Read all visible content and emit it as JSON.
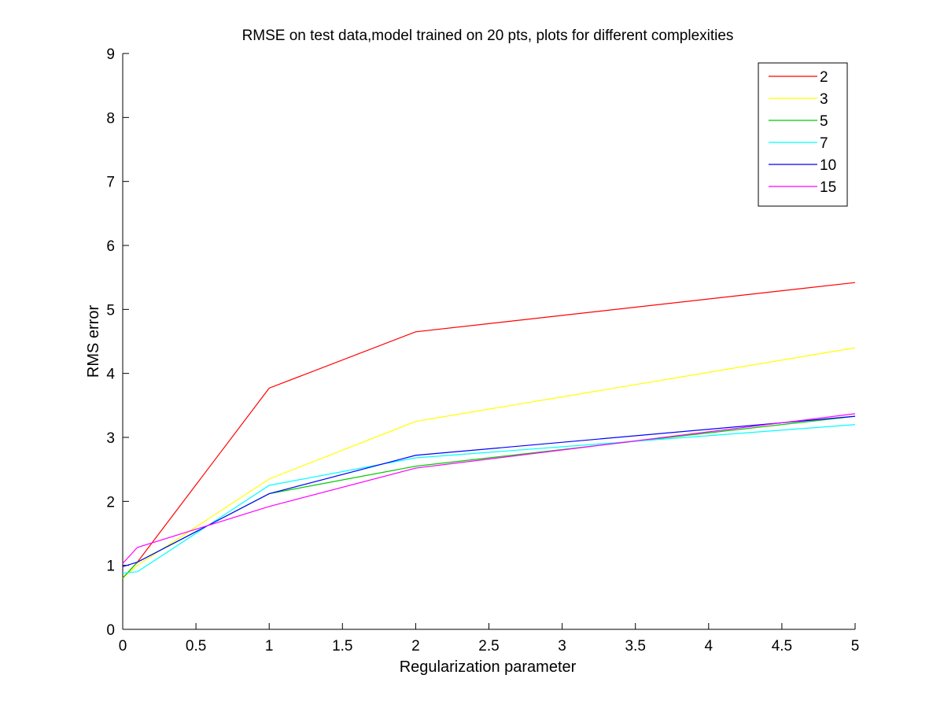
{
  "chart_data": {
    "type": "line",
    "title": "RMSE on test data,model trained on 20 pts, plots for different complexities",
    "xlabel": "Regularization parameter",
    "ylabel": "RMS error",
    "xlim": [
      0,
      5
    ],
    "ylim": [
      0,
      9
    ],
    "x_ticks": [
      0,
      0.5,
      1,
      1.5,
      2,
      2.5,
      3,
      3.5,
      4,
      4.5,
      5
    ],
    "y_ticks": [
      0,
      1,
      2,
      3,
      4,
      5,
      6,
      7,
      8,
      9
    ],
    "grid": false,
    "legend_position": "top-right",
    "x": [
      0,
      0.1,
      1,
      2,
      5
    ],
    "series": [
      {
        "name": "2",
        "color": "#ff0000",
        "values": [
          0.8,
          1.05,
          3.77,
          4.65,
          5.42
        ]
      },
      {
        "name": "3",
        "color": "#ffff00",
        "values": [
          0.8,
          1.0,
          2.35,
          3.25,
          4.4
        ]
      },
      {
        "name": "5",
        "color": "#00cc00",
        "values": [
          0.8,
          1.05,
          2.12,
          2.55,
          3.33
        ]
      },
      {
        "name": "7",
        "color": "#00ffff",
        "values": [
          0.88,
          0.9,
          2.25,
          2.68,
          3.2
        ]
      },
      {
        "name": "10",
        "color": "#0000ff",
        "values": [
          0.98,
          1.05,
          2.12,
          2.72,
          3.33
        ]
      },
      {
        "name": "15",
        "color": "#ff00ff",
        "values": [
          1.03,
          1.28,
          1.92,
          2.52,
          3.37
        ]
      }
    ]
  }
}
